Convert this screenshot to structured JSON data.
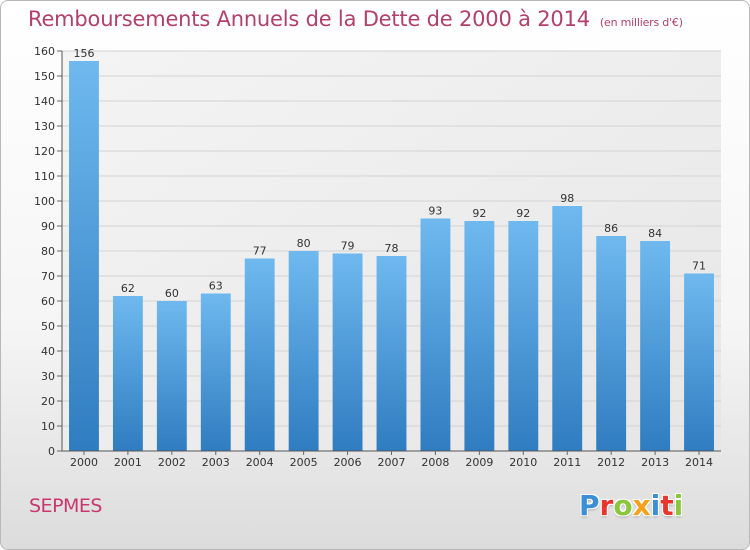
{
  "header": {
    "title": "Remboursements Annuels de la Dette de 2000 à 2014",
    "unit": "(en milliers d'€)"
  },
  "footer": {
    "commune": "SEPMES",
    "logo_letters": [
      "P",
      "r",
      "o",
      "x",
      "i",
      "t",
      "i"
    ],
    "logo_colors": [
      "#3a8fd6",
      "#e8362f",
      "#8cc63e",
      "#f7a11a",
      "#3a8fd6",
      "#e8362f",
      "#8cc63e"
    ]
  },
  "chart_data": {
    "type": "bar",
    "categories": [
      "2000",
      "2001",
      "2002",
      "2003",
      "2004",
      "2005",
      "2006",
      "2007",
      "2008",
      "2009",
      "2010",
      "2011",
      "2012",
      "2013",
      "2014"
    ],
    "values": [
      156,
      62,
      60,
      63,
      77,
      80,
      79,
      78,
      93,
      92,
      92,
      98,
      86,
      84,
      71
    ],
    "ylim": [
      0,
      160
    ],
    "yticks": [
      0,
      10,
      20,
      30,
      40,
      50,
      60,
      70,
      80,
      90,
      100,
      110,
      120,
      130,
      140,
      150,
      160
    ],
    "grid": true,
    "bar_color_top": "#6fb9ef",
    "bar_color_bottom": "#2f7cc0"
  }
}
